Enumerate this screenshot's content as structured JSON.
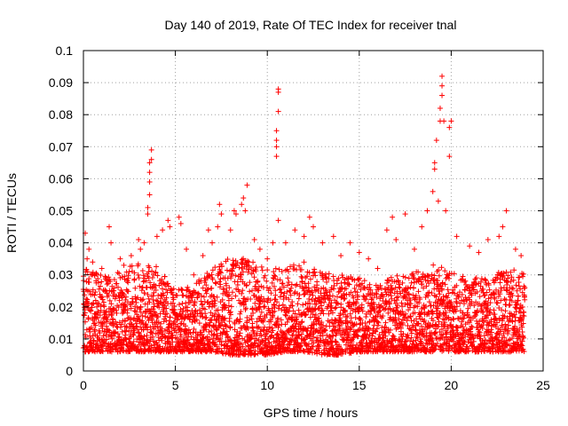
{
  "chart_data": {
    "type": "scatter",
    "title": "Day 140 of 2019, Rate Of TEC Index for receiver tnal",
    "xlabel": "GPS time / hours",
    "ylabel": "ROTI / TECUs",
    "xlim": [
      0,
      25
    ],
    "ylim": [
      0,
      0.1
    ],
    "xticks": [
      0,
      5,
      10,
      15,
      20,
      25
    ],
    "xtick_labels": [
      "0",
      "5",
      "10",
      "15",
      "20",
      "25"
    ],
    "yticks": [
      0,
      0.01,
      0.02,
      0.03,
      0.04,
      0.05,
      0.06,
      0.07,
      0.08,
      0.09,
      0.1
    ],
    "ytick_labels": [
      "0",
      "0.01",
      "0.02",
      "0.03",
      "0.04",
      "0.05",
      "0.06",
      "0.07",
      "0.08",
      "0.09",
      "0.1"
    ],
    "grid": true,
    "marker": "+",
    "color": "#ff0000",
    "series": [
      {
        "name": "ROTI",
        "points": [
          [
            0.1,
            0.043
          ],
          [
            0.2,
            0.035
          ],
          [
            0.3,
            0.038
          ],
          [
            0.5,
            0.034
          ],
          [
            0.6,
            0.03
          ],
          [
            1.0,
            0.032
          ],
          [
            1.4,
            0.045
          ],
          [
            1.5,
            0.04
          ],
          [
            2.0,
            0.035
          ],
          [
            2.2,
            0.033
          ],
          [
            2.6,
            0.036
          ],
          [
            3.0,
            0.041
          ],
          [
            3.1,
            0.038
          ],
          [
            3.3,
            0.04
          ],
          [
            3.5,
            0.051
          ],
          [
            3.5,
            0.049
          ],
          [
            3.6,
            0.059
          ],
          [
            3.6,
            0.055
          ],
          [
            3.6,
            0.062
          ],
          [
            3.6,
            0.065
          ],
          [
            3.7,
            0.066
          ],
          [
            3.7,
            0.069
          ],
          [
            4.0,
            0.042
          ],
          [
            4.3,
            0.044
          ],
          [
            4.6,
            0.047
          ],
          [
            4.7,
            0.045
          ],
          [
            5.2,
            0.048
          ],
          [
            5.3,
            0.046
          ],
          [
            5.6,
            0.038
          ],
          [
            6.0,
            0.03
          ],
          [
            6.5,
            0.036
          ],
          [
            6.8,
            0.044
          ],
          [
            7.0,
            0.04
          ],
          [
            7.3,
            0.045
          ],
          [
            7.4,
            0.052
          ],
          [
            7.5,
            0.049
          ],
          [
            8.0,
            0.044
          ],
          [
            8.2,
            0.05
          ],
          [
            8.3,
            0.049
          ],
          [
            8.6,
            0.052
          ],
          [
            8.7,
            0.054
          ],
          [
            8.8,
            0.05
          ],
          [
            8.9,
            0.058
          ],
          [
            9.3,
            0.041
          ],
          [
            9.6,
            0.038
          ],
          [
            10.0,
            0.035
          ],
          [
            10.3,
            0.04
          ],
          [
            10.5,
            0.067
          ],
          [
            10.5,
            0.07
          ],
          [
            10.5,
            0.072
          ],
          [
            10.5,
            0.075
          ],
          [
            10.6,
            0.081
          ],
          [
            10.6,
            0.087
          ],
          [
            10.6,
            0.088
          ],
          [
            10.6,
            0.047
          ],
          [
            11.0,
            0.04
          ],
          [
            11.5,
            0.044
          ],
          [
            12.0,
            0.042
          ],
          [
            12.3,
            0.048
          ],
          [
            12.5,
            0.045
          ],
          [
            13.0,
            0.04
          ],
          [
            13.6,
            0.042
          ],
          [
            14.0,
            0.036
          ],
          [
            14.5,
            0.04
          ],
          [
            15.0,
            0.037
          ],
          [
            15.5,
            0.035
          ],
          [
            16.0,
            0.032
          ],
          [
            16.5,
            0.044
          ],
          [
            16.8,
            0.048
          ],
          [
            17.0,
            0.041
          ],
          [
            17.5,
            0.049
          ],
          [
            18.0,
            0.038
          ],
          [
            18.4,
            0.045
          ],
          [
            18.7,
            0.05
          ],
          [
            19.0,
            0.056
          ],
          [
            19.1,
            0.063
          ],
          [
            19.1,
            0.065
          ],
          [
            19.2,
            0.072
          ],
          [
            19.3,
            0.053
          ],
          [
            19.4,
            0.078
          ],
          [
            19.4,
            0.082
          ],
          [
            19.5,
            0.086
          ],
          [
            19.5,
            0.089
          ],
          [
            19.5,
            0.092
          ],
          [
            19.6,
            0.078
          ],
          [
            19.7,
            0.05
          ],
          [
            19.9,
            0.067
          ],
          [
            19.9,
            0.076
          ],
          [
            20.0,
            0.078
          ],
          [
            20.3,
            0.042
          ],
          [
            21.0,
            0.039
          ],
          [
            21.5,
            0.037
          ],
          [
            22.0,
            0.041
          ],
          [
            22.6,
            0.042
          ],
          [
            22.8,
            0.045
          ],
          [
            23.0,
            0.05
          ],
          [
            23.5,
            0.038
          ],
          [
            23.8,
            0.036
          ]
        ]
      }
    ],
    "band_profile": {
      "description_note": "",
      "hours": [
        0,
        1,
        2,
        3,
        4,
        5,
        6,
        7,
        8,
        9,
        10,
        11,
        12,
        13,
        14,
        15,
        16,
        17,
        18,
        19,
        20,
        21,
        22,
        23,
        24
      ],
      "low": [
        0.006,
        0.006,
        0.006,
        0.006,
        0.006,
        0.006,
        0.006,
        0.006,
        0.005,
        0.005,
        0.005,
        0.006,
        0.006,
        0.005,
        0.005,
        0.006,
        0.006,
        0.006,
        0.006,
        0.006,
        0.006,
        0.006,
        0.006,
        0.006,
        0.006
      ],
      "high": [
        0.032,
        0.03,
        0.031,
        0.034,
        0.033,
        0.025,
        0.027,
        0.032,
        0.036,
        0.035,
        0.032,
        0.033,
        0.034,
        0.031,
        0.03,
        0.029,
        0.027,
        0.03,
        0.031,
        0.035,
        0.031,
        0.029,
        0.03,
        0.032,
        0.032
      ]
    }
  }
}
